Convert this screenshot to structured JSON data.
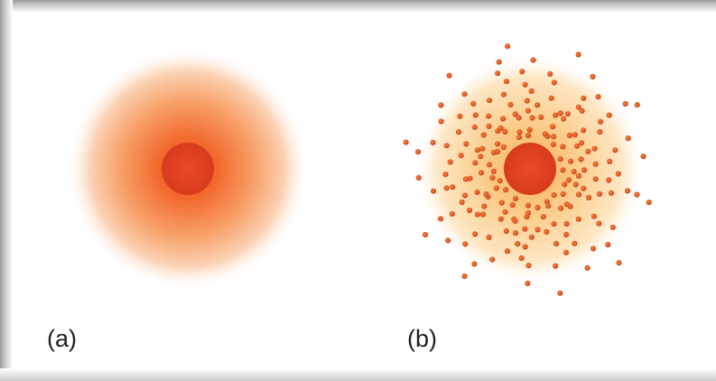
{
  "panels": [
    {
      "label": "(a)"
    },
    {
      "label": "(b)"
    }
  ],
  "colors": {
    "nucleus": "#e23a1f",
    "electron_cloud": "#f26a2e",
    "electron_dot": "#e2501f",
    "cloud_glow": "#fbd59a"
  }
}
